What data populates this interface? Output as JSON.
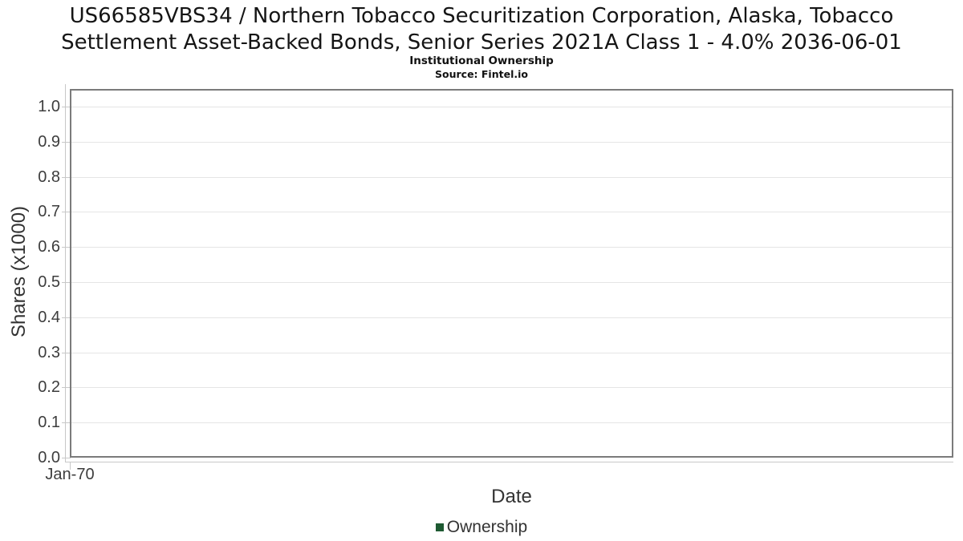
{
  "chart_data": {
    "type": "line",
    "title": "US66585VBS34 / Northern Tobacco Securitization Corporation, Alaska, Tobacco Settlement Asset-Backed Bonds, Senior Series 2021A Class 1 - 4.0% 2036-06-01",
    "title_lines": [
      "US66585VBS34 / Northern Tobacco Securitization Corporation, Alaska, Tobacco",
      "Settlement Asset-Backed Bonds, Senior Series 2021A Class 1 - 4.0% 2036-06-01"
    ],
    "subtitle": "Institutional Ownership",
    "source": "Source: Fintel.io",
    "xlabel": "Date",
    "ylabel": "Shares (x1000)",
    "x_ticks": [
      "Jan-70"
    ],
    "y_ticks": [
      "1.0",
      "0.9",
      "0.8",
      "0.7",
      "0.6",
      "0.5",
      "0.4",
      "0.3",
      "0.2",
      "0.1",
      "0.0"
    ],
    "ylim": [
      0.0,
      1.05
    ],
    "grid": {
      "horizontal": true,
      "vertical": false
    },
    "legend": {
      "position": "bottom",
      "entries": [
        {
          "label": "Ownership",
          "color": "#1e5a32"
        }
      ]
    },
    "series": [
      {
        "name": "Ownership",
        "color": "#1e5a32",
        "x": [],
        "values": []
      }
    ]
  },
  "colors": {
    "background": "#ffffff",
    "title_text": "#151515",
    "axis_title_text": "#333333",
    "tick_text": "#3d3d3d",
    "plot_border": "#7b7b7b",
    "axis_line": "#c8c8c8",
    "gridline": "#e5e5e5",
    "ownership_green": "#1e5a32"
  }
}
